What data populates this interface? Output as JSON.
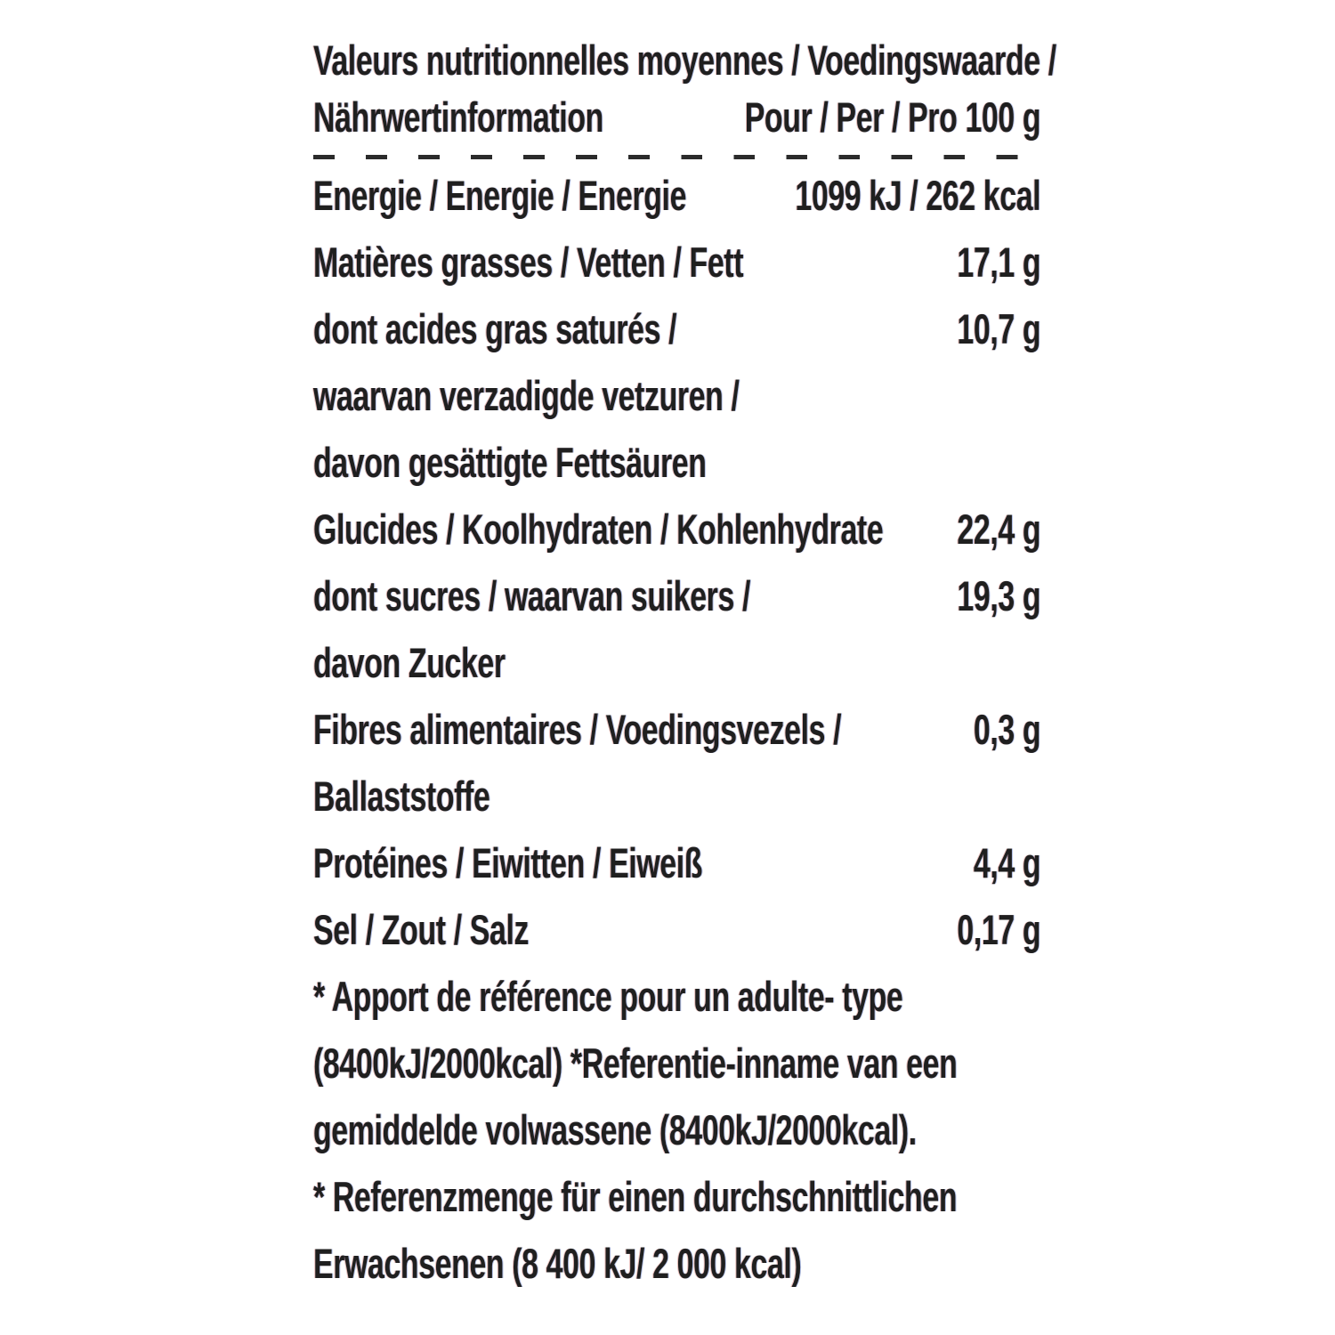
{
  "nutrition_label": {
    "text_color": "#1f1f1f",
    "background_color": "#ffffff",
    "header": {
      "title_line1": "Valeurs nutritionnelles moyennes / Voedingswaarde /",
      "title_line2": "Nährwertinformation",
      "per_quantity": "Pour / Per / Pro 100 g"
    },
    "rows": [
      {
        "label": "Energie / Energie / Energie",
        "value": "1099 kJ / 262 kcal"
      },
      {
        "label": "Matières grasses / Vetten / Fett",
        "value": "17,1 g"
      },
      {
        "label": "dont acides gras saturés /",
        "value": "10,7 g"
      },
      {
        "label": "waarvan verzadigde vetzuren /",
        "value": ""
      },
      {
        "label": "davon gesättigte Fettsäuren",
        "value": ""
      },
      {
        "label": "Glucides / Koolhydraten / Kohlenhydrate",
        "value": "22,4 g"
      },
      {
        "label": "dont sucres / waarvan suikers /",
        "value": "19,3 g"
      },
      {
        "label": "davon Zucker",
        "value": ""
      },
      {
        "label": "Fibres alimentaires / Voedingsvezels /",
        "value": "0,3 g"
      },
      {
        "label": "Ballaststoffe",
        "value": ""
      },
      {
        "label": "Protéines / Eiwitten / Eiweiß",
        "value": "4,4 g"
      },
      {
        "label": "Sel / Zout / Salz",
        "value": "0,17 g"
      }
    ],
    "footnotes": [
      "* Apport de référence pour un adulte- type",
      "(8400kJ/2000kcal) *Referentie-inname van een",
      "gemiddelde volwassene (8400kJ/2000kcal).",
      "* Referenzmenge für einen durchschnittlichen",
      "Erwachsenen (8 400 kJ/ 2 000 kcal)"
    ]
  }
}
